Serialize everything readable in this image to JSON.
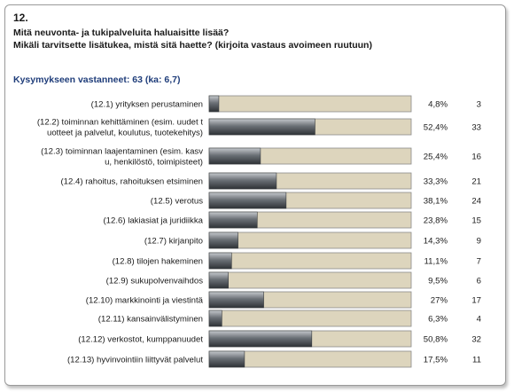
{
  "question": {
    "number": "12.",
    "line1": "Mitä neuvonta- ja tukipalveluita haluaisitte lisää?",
    "line2": "Mikäli tarvitsette lisätukea, mistä sitä haette? (kirjoita vastaus avoimeen ruutuun)"
  },
  "respondents_label": "Kysymykseen vastanneet: 63 (ka: 6,7)",
  "colors": {
    "bar_fill": "#5c6166",
    "track": "#ddd5bd",
    "track_border": "#8a8a8a",
    "title_blue": "#1f3d7a"
  },
  "chart_data": {
    "type": "bar",
    "orientation": "horizontal",
    "xlim": [
      0,
      100
    ],
    "categories": [
      [
        "(12.1) yrityksen perustaminen"
      ],
      [
        "(12.2) toiminnan kehittäminen (esim. uudet t",
        "uotteet ja palvelut, koulutus, tuotekehitys)"
      ],
      [
        "(12.3) toiminnan laajentaminen (esim. kasv",
        "u, henkilöstö, toimipisteet)"
      ],
      [
        "(12.4) rahoitus, rahoituksen etsiminen"
      ],
      [
        "(12.5) verotus"
      ],
      [
        "(12.6) lakiasiat ja juridiikka"
      ],
      [
        "(12.7) kirjanpito"
      ],
      [
        "(12.8) tilojen hakeminen"
      ],
      [
        "(12.9) sukupolvenvaihdos"
      ],
      [
        "(12.10) markkinointi ja viestintä"
      ],
      [
        "(12.11) kansainvälistyminen"
      ],
      [
        "(12.12) verkostot, kumppanuudet"
      ],
      [
        "(12.13) hyvinvointiin liittyvät palvelut"
      ]
    ],
    "values": [
      4.8,
      52.4,
      25.4,
      33.3,
      38.1,
      23.8,
      14.3,
      11.1,
      9.5,
      27,
      6.3,
      50.8,
      17.5
    ],
    "value_labels": [
      "4,8%",
      "52,4%",
      "25,4%",
      "33,3%",
      "38,1%",
      "23,8%",
      "14,3%",
      "11,1%",
      "9,5%",
      "27%",
      "6,3%",
      "50,8%",
      "17,5%"
    ],
    "counts": [
      "3",
      "33",
      "16",
      "21",
      "24",
      "15",
      "9",
      "7",
      "6",
      "17",
      "4",
      "32",
      "11"
    ]
  }
}
